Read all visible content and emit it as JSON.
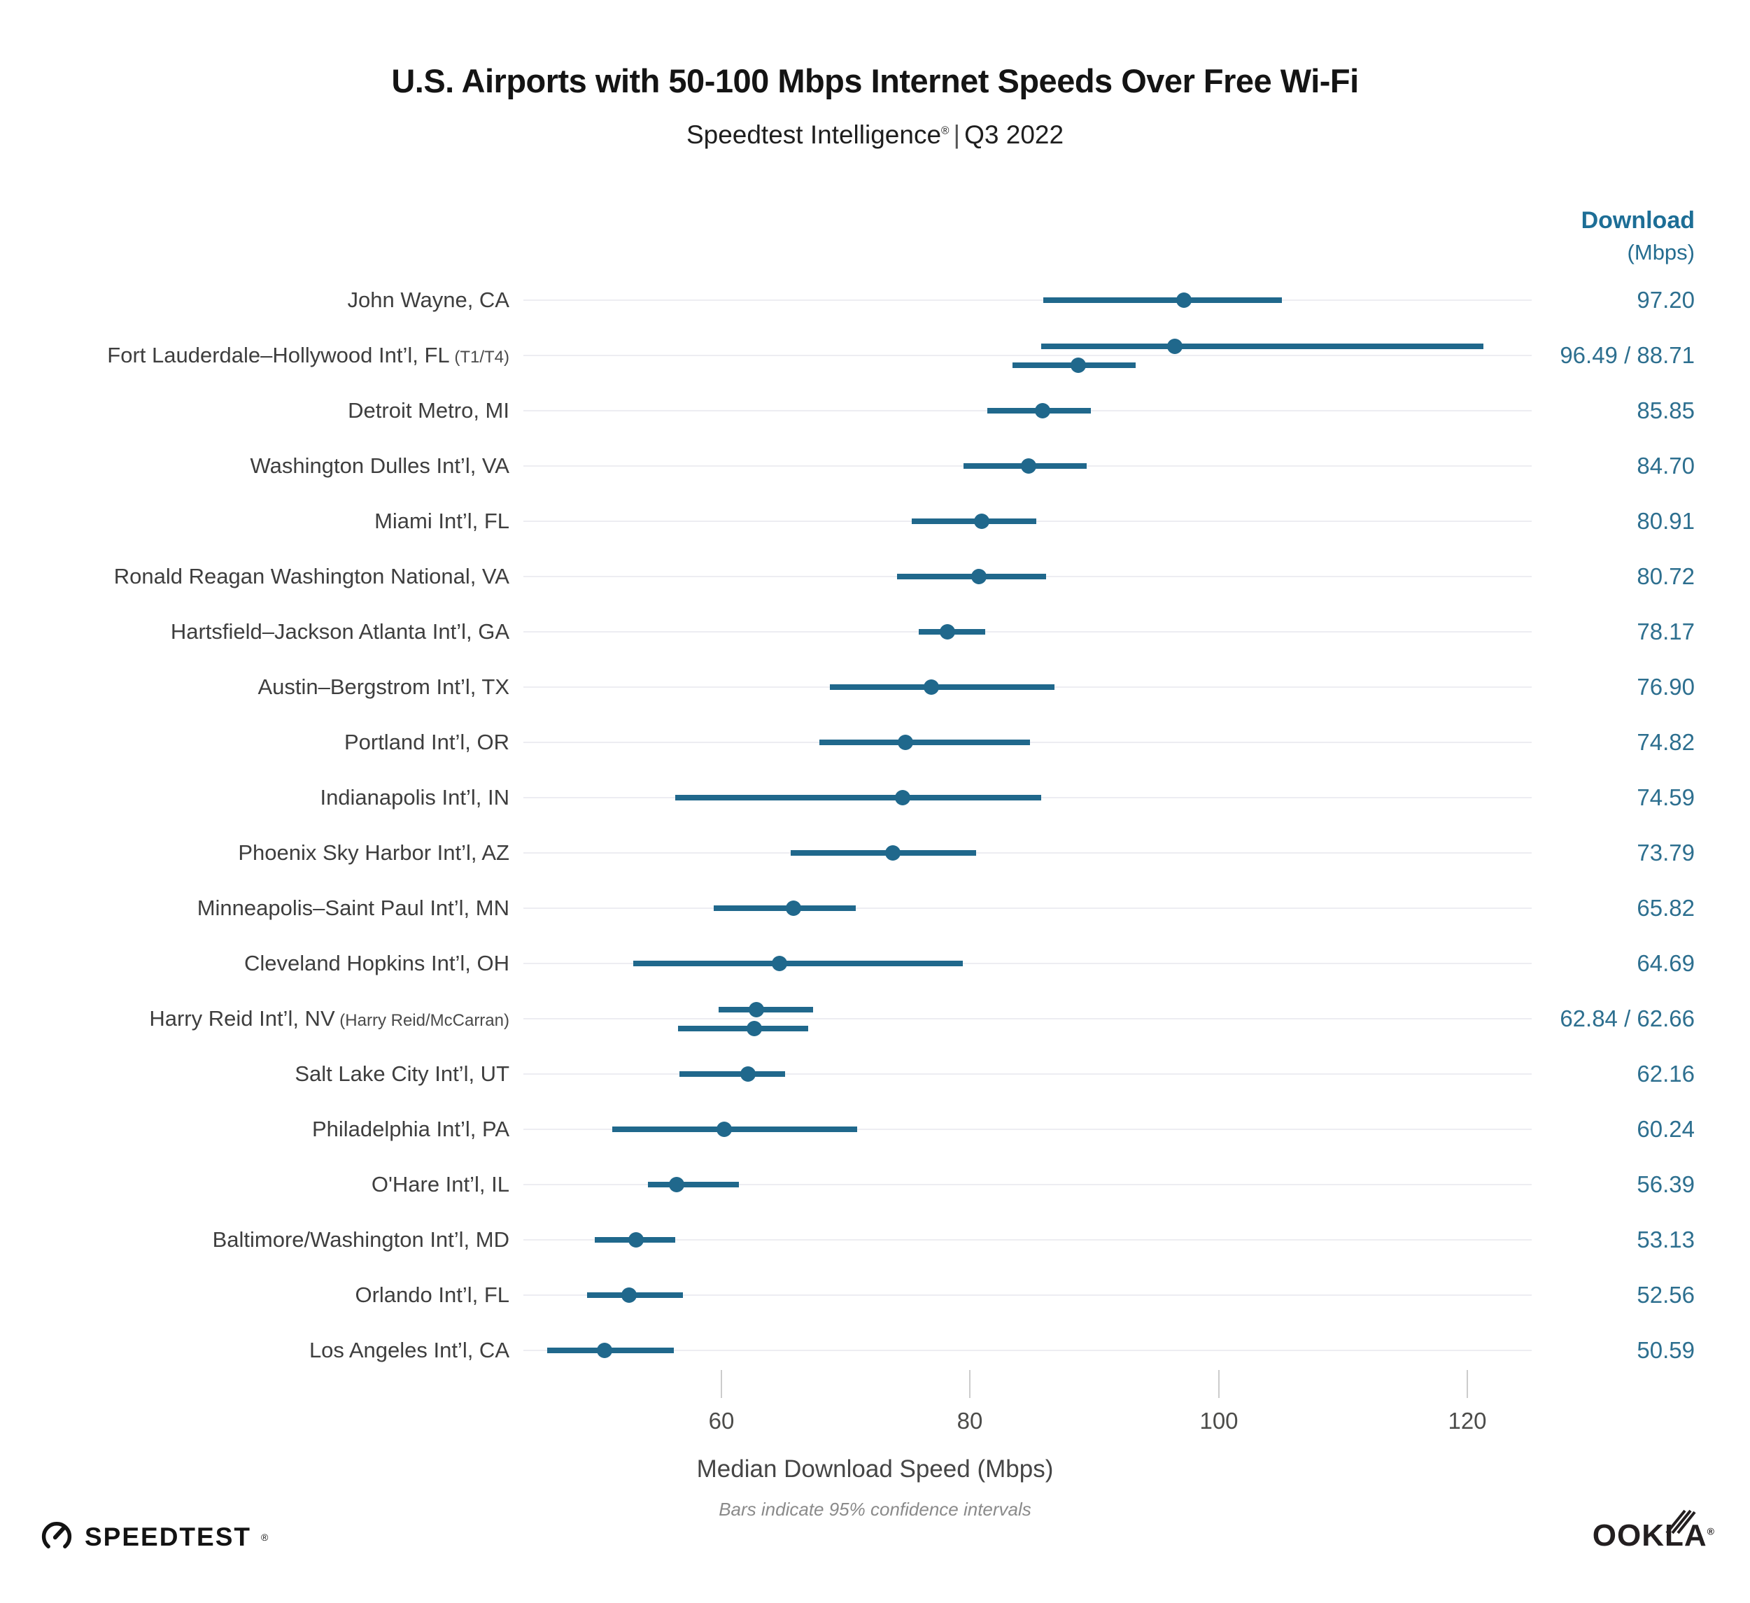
{
  "title": "U.S. Airports with 50-100 Mbps Internet Speeds Over Free Wi-Fi",
  "subtitle": {
    "brand": "Speedtest Intelligence",
    "reg": "®",
    "separator": "|",
    "period": "Q3 2022"
  },
  "column_header": {
    "line1": "Download",
    "line2": "(Mbps)"
  },
  "chart_data": {
    "type": "scatter",
    "subtype": "dot-plot-with-95pct-confidence-intervals",
    "xlabel": "Median Download Speed (Mbps)",
    "footnote": "Bars indicate 95% confidence intervals",
    "x_ticks": [
      60,
      80,
      100,
      120
    ],
    "x_range": [
      44,
      125.5
    ],
    "grid": "horizontal-row-lines-only",
    "colors": {
      "accent": "#20688c",
      "value_text": "#2d6f8f",
      "header_text": "#1d6e96",
      "gridline": "#ededf2",
      "label_text": "#3e3e3e",
      "tick_text": "#4c4c4a"
    },
    "rows": [
      {
        "label": "John Wayne, CA",
        "label_small": "",
        "value_label": "97.20",
        "points": [
          {
            "median": 97.2,
            "ci_low": 85.9,
            "ci_high": 105.1
          }
        ]
      },
      {
        "label": "Fort Lauderdale–Hollywood Int’l, FL",
        "label_small": "(T1/T4)",
        "value_label": "96.49 / 88.71",
        "points": [
          {
            "median": 96.49,
            "ci_low": 85.7,
            "ci_high": 121.3
          },
          {
            "median": 88.71,
            "ci_low": 83.4,
            "ci_high": 93.3
          }
        ]
      },
      {
        "label": "Detroit Metro, MI",
        "label_small": "",
        "value_label": "85.85",
        "points": [
          {
            "median": 85.85,
            "ci_low": 81.4,
            "ci_high": 89.7
          }
        ]
      },
      {
        "label": "Washington Dulles Int’l, VA",
        "label_small": "",
        "value_label": "84.70",
        "points": [
          {
            "median": 84.7,
            "ci_low": 79.5,
            "ci_high": 89.4
          }
        ]
      },
      {
        "label": "Miami Int’l, FL",
        "label_small": "",
        "value_label": "80.91",
        "points": [
          {
            "median": 80.91,
            "ci_low": 75.3,
            "ci_high": 85.3
          }
        ]
      },
      {
        "label": "Ronald Reagan Washington National, VA",
        "label_small": "",
        "value_label": "80.72",
        "points": [
          {
            "median": 80.72,
            "ci_low": 74.1,
            "ci_high": 86.1
          }
        ]
      },
      {
        "label": "Hartsfield–Jackson Atlanta Int’l, GA",
        "label_small": "",
        "value_label": "78.17",
        "points": [
          {
            "median": 78.17,
            "ci_low": 75.9,
            "ci_high": 81.2
          }
        ]
      },
      {
        "label": "Austin–Bergstrom Int’l, TX",
        "label_small": "",
        "value_label": "76.90",
        "points": [
          {
            "median": 76.9,
            "ci_low": 68.7,
            "ci_high": 86.8
          }
        ]
      },
      {
        "label": "Portland Int’l, OR",
        "label_small": "",
        "value_label": "74.82",
        "points": [
          {
            "median": 74.82,
            "ci_low": 67.9,
            "ci_high": 84.8
          }
        ]
      },
      {
        "label": "Indianapolis Int’l, IN",
        "label_small": "",
        "value_label": "74.59",
        "points": [
          {
            "median": 74.59,
            "ci_low": 56.3,
            "ci_high": 85.7
          }
        ]
      },
      {
        "label": "Phoenix Sky Harbor Int’l, AZ",
        "label_small": "",
        "value_label": "73.79",
        "points": [
          {
            "median": 73.79,
            "ci_low": 65.6,
            "ci_high": 80.5
          }
        ]
      },
      {
        "label": "Minneapolis–Saint Paul Int’l, MN",
        "label_small": "",
        "value_label": "65.82",
        "points": [
          {
            "median": 65.82,
            "ci_low": 59.4,
            "ci_high": 70.8
          }
        ]
      },
      {
        "label": "Cleveland Hopkins Int’l, OH",
        "label_small": "",
        "value_label": "64.69",
        "points": [
          {
            "median": 64.69,
            "ci_low": 52.9,
            "ci_high": 79.4
          }
        ]
      },
      {
        "label": "Harry Reid Int’l, NV",
        "label_small": "(Harry Reid/McCarran)",
        "value_label": "62.84 / 62.66",
        "points": [
          {
            "median": 62.84,
            "ci_low": 59.8,
            "ci_high": 67.4
          },
          {
            "median": 62.66,
            "ci_low": 56.5,
            "ci_high": 67.0
          }
        ]
      },
      {
        "label": "Salt Lake City Int’l, UT",
        "label_small": "",
        "value_label": "62.16",
        "points": [
          {
            "median": 62.16,
            "ci_low": 56.6,
            "ci_high": 65.1
          }
        ]
      },
      {
        "label": "Philadelphia Int’l, PA",
        "label_small": "",
        "value_label": "60.24",
        "points": [
          {
            "median": 60.24,
            "ci_low": 51.2,
            "ci_high": 70.9
          }
        ]
      },
      {
        "label": "O'Hare Int’l, IL",
        "label_small": "",
        "value_label": "56.39",
        "points": [
          {
            "median": 56.39,
            "ci_low": 54.1,
            "ci_high": 61.4
          }
        ]
      },
      {
        "label": "Baltimore/Washington Int’l, MD",
        "label_small": "",
        "value_label": "53.13",
        "points": [
          {
            "median": 53.13,
            "ci_low": 49.8,
            "ci_high": 56.3
          }
        ]
      },
      {
        "label": "Orlando Int’l, FL",
        "label_small": "",
        "value_label": "52.56",
        "points": [
          {
            "median": 52.56,
            "ci_low": 49.2,
            "ci_high": 56.9
          }
        ]
      },
      {
        "label": "Los Angeles Int’l, CA",
        "label_small": "",
        "value_label": "50.59",
        "points": [
          {
            "median": 50.59,
            "ci_low": 46.0,
            "ci_high": 56.2
          }
        ]
      }
    ]
  },
  "footer": {
    "speedtest": "SPEEDTEST",
    "ookla": "OOKLA",
    "reg": "®"
  }
}
